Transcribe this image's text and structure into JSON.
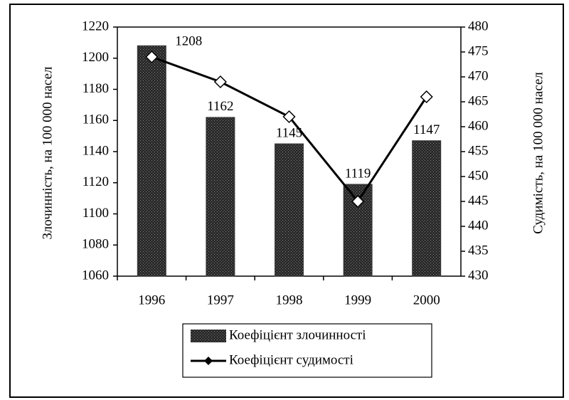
{
  "chart_data": {
    "type": "bar_line",
    "categories": [
      "1996",
      "1997",
      "1998",
      "1999",
      "2000"
    ],
    "series": [
      {
        "name": "Коефіцієнт злочинності",
        "type": "bar",
        "color": "#3a3a3a",
        "values": [
          1208,
          1162,
          1145,
          1119,
          1147
        ]
      },
      {
        "name": "Коефіцієнт судимості",
        "type": "line",
        "axis": "y2",
        "color": "#000000",
        "values": [
          474,
          469,
          462,
          445,
          466
        ]
      }
    ],
    "ylabel": "Злочинність, на 100 000 насел",
    "y2label": "Судимість, на 100 000 насел",
    "ylim": [
      1060,
      1220
    ],
    "yticks": [
      1060,
      1080,
      1100,
      1120,
      1140,
      1160,
      1180,
      1200,
      1220
    ],
    "y2lim": [
      430,
      480
    ],
    "y2ticks": [
      430,
      435,
      440,
      445,
      450,
      455,
      460,
      465,
      470,
      475,
      480
    ],
    "legend": "bottom"
  }
}
